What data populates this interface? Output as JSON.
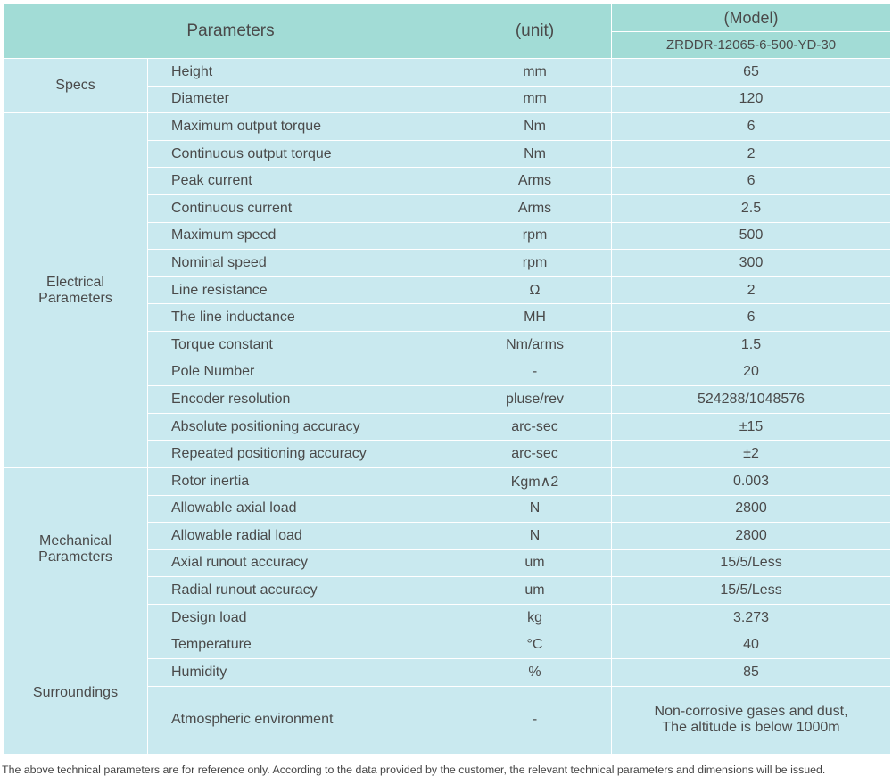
{
  "header": {
    "parameters": "Parameters",
    "unit": "(unit)",
    "model": "(Model)",
    "model_name": "ZRDDR-12065-6-500-YD-30"
  },
  "groups": [
    {
      "name": "Specs",
      "rows": [
        [
          "Height",
          "mm",
          "65"
        ],
        [
          "Diameter",
          "mm",
          "120"
        ]
      ]
    },
    {
      "name": "Electrical Parameters",
      "rows": [
        [
          "Maximum output torque",
          "Nm",
          "6"
        ],
        [
          "Continuous output torque",
          "Nm",
          "2"
        ],
        [
          "Peak current",
          "Arms",
          "6"
        ],
        [
          "Continuous current",
          "Arms",
          "2.5"
        ],
        [
          "Maximum speed",
          "rpm",
          "500"
        ],
        [
          "Nominal speed",
          "rpm",
          "300"
        ],
        [
          "Line resistance",
          "Ω",
          "2"
        ],
        [
          "The line inductance",
          "MH",
          "6"
        ],
        [
          "Torque constant",
          "Nm/arms",
          "1.5"
        ],
        [
          "Pole Number",
          "-",
          "20"
        ],
        [
          "Encoder resolution",
          "pluse/rev",
          "524288/1048576"
        ],
        [
          "Absolute positioning accuracy",
          "arc-sec",
          "±15"
        ],
        [
          "Repeated positioning accuracy",
          "arc-sec",
          "±2"
        ]
      ]
    },
    {
      "name": "Mechanical Parameters",
      "rows": [
        [
          "Rotor inertia",
          "Kgm∧2",
          "0.003"
        ],
        [
          "Allowable axial load",
          "N",
          "2800"
        ],
        [
          "Allowable radial load",
          "N",
          "2800"
        ],
        [
          "Axial runout accuracy",
          "um",
          "15/5/Less"
        ],
        [
          "Radial runout accuracy",
          "um",
          "15/5/Less"
        ],
        [
          "Design load",
          "kg",
          "3.273"
        ]
      ]
    },
    {
      "name": "Surroundings",
      "rows": [
        [
          "Temperature",
          "°C",
          "40"
        ],
        [
          "Humidity",
          "%",
          "85"
        ],
        [
          "Atmospheric environment",
          "-",
          [
            "Non-corrosive gases and dust,",
            "The altitude is below 1000m"
          ]
        ]
      ]
    }
  ],
  "footnote": "The above technical parameters are for reference only. According to the data provided by the customer, the relevant technical parameters and dimensions will be issued."
}
